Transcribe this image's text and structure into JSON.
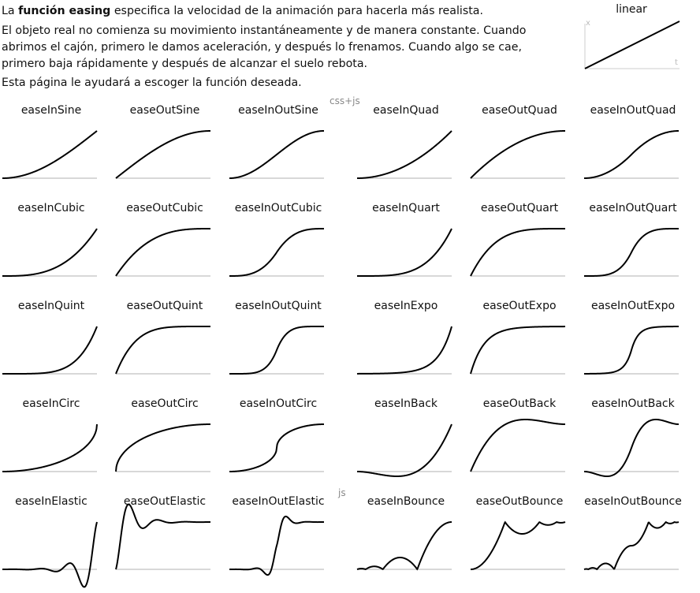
{
  "intro": {
    "p1_prefix": "La ",
    "p1_bold": "función easing",
    "p1_suffix": " especifica la velocidad de la animación para hacerla más realista.",
    "p2": "El objeto real no comienza su movimiento instantáneamente y de manera constante. Cuando abrimos el cajón, primero le damos aceleración, y después lo frenamos. Cuando algo se cae, primero baja rápidamente y después de alcanzar el suelo rebota.",
    "p3": "Esta página le ayudará a escoger la función deseada."
  },
  "linear": {
    "title": "linear",
    "axis_x": "t",
    "axis_y": "x"
  },
  "sections": {
    "css_js": "css+js",
    "js": "js"
  },
  "easings": [
    [
      "easeInSine",
      "easeOutSine",
      "easeInOutSine",
      "easeInQuad",
      "easeOutQuad",
      "easeInOutQuad"
    ],
    [
      "easeInCubic",
      "easeOutCubic",
      "easeInOutCubic",
      "easeInQuart",
      "easeOutQuart",
      "easeInOutQuart"
    ],
    [
      "easeInQuint",
      "easeOutQuint",
      "easeInOutQuint",
      "easeInExpo",
      "easeOutExpo",
      "easeInOutExpo"
    ],
    [
      "easeInCirc",
      "easeOutCirc",
      "easeInOutCirc",
      "easeInBack",
      "easeOutBack",
      "easeInOutBack"
    ],
    [
      "easeInElastic",
      "easeOutElastic",
      "easeInOutElastic",
      "easeInBounce",
      "easeOutBounce",
      "easeInOutBounce"
    ]
  ],
  "colors": {
    "curve": "#000000",
    "baseline": "#cccccc",
    "axis": "#cccccc"
  }
}
